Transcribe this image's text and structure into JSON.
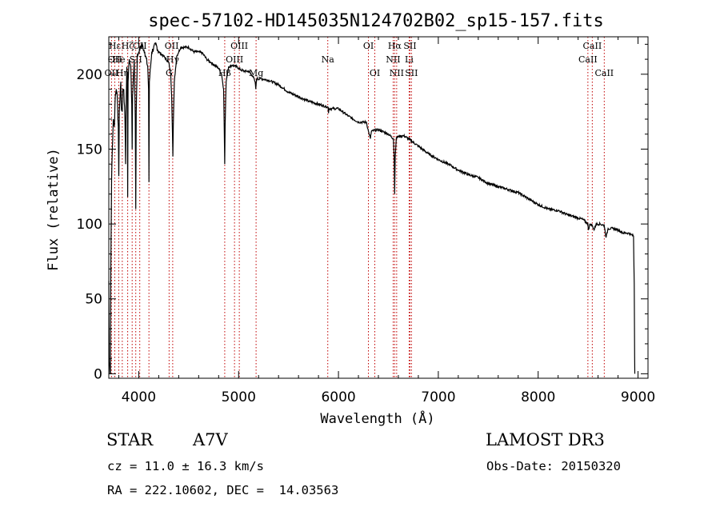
{
  "chart_data": {
    "type": "line",
    "title": "spec-57102-HD145035N124702B02_sp15-157.fits",
    "xlabel": "Wavelength (Å)",
    "ylabel": "Flux (relative)",
    "xlim": [
      3700,
      9100
    ],
    "ylim": [
      -3,
      225
    ],
    "xticks": [
      4000,
      5000,
      6000,
      7000,
      8000,
      9000
    ],
    "yticks": [
      0,
      50,
      100,
      150,
      200
    ],
    "series": [
      {
        "name": "spectrum",
        "points": [
          [
            3700,
            62
          ],
          [
            3705,
            8
          ],
          [
            3710,
            5
          ],
          [
            3712,
            0
          ],
          [
            3716,
            0
          ],
          [
            3720,
            70
          ],
          [
            3728,
            130
          ],
          [
            3735,
            150
          ],
          [
            3745,
            170
          ],
          [
            3755,
            165
          ],
          [
            3765,
            185
          ],
          [
            3775,
            190
          ],
          [
            3785,
            185
          ],
          [
            3795,
            165
          ],
          [
            3800,
            132
          ],
          [
            3805,
            175
          ],
          [
            3820,
            195
          ],
          [
            3825,
            178
          ],
          [
            3835,
            175
          ],
          [
            3840,
            190
          ],
          [
            3850,
            190
          ],
          [
            3862,
            170
          ],
          [
            3868,
            140
          ],
          [
            3872,
            175
          ],
          [
            3880,
            205
          ],
          [
            3885,
            200
          ],
          [
            3889,
            118
          ],
          [
            3893,
            195
          ],
          [
            3905,
            210
          ],
          [
            3920,
            205
          ],
          [
            3930,
            180
          ],
          [
            3934,
            150
          ],
          [
            3938,
            185
          ],
          [
            3955,
            210
          ],
          [
            3965,
            170
          ],
          [
            3970,
            110
          ],
          [
            3975,
            175
          ],
          [
            3985,
            212
          ],
          [
            4000,
            215
          ],
          [
            4030,
            220
          ],
          [
            4060,
            215
          ],
          [
            4090,
            205
          ],
          [
            4098,
            190
          ],
          [
            4102,
            128
          ],
          [
            4106,
            195
          ],
          [
            4130,
            215
          ],
          [
            4170,
            220
          ],
          [
            4200,
            215
          ],
          [
            4250,
            212
          ],
          [
            4300,
            208
          ],
          [
            4320,
            200
          ],
          [
            4330,
            185
          ],
          [
            4338,
            160
          ],
          [
            4342,
            145
          ],
          [
            4346,
            165
          ],
          [
            4356,
            195
          ],
          [
            4380,
            212
          ],
          [
            4420,
            218
          ],
          [
            4460,
            218
          ],
          [
            4500,
            218
          ],
          [
            4550,
            215
          ],
          [
            4600,
            215
          ],
          [
            4640,
            214
          ],
          [
            4680,
            210
          ],
          [
            4720,
            208
          ],
          [
            4760,
            206
          ],
          [
            4800,
            204
          ],
          [
            4830,
            200
          ],
          [
            4850,
            190
          ],
          [
            4857,
            160
          ],
          [
            4861,
            140
          ],
          [
            4865,
            165
          ],
          [
            4875,
            195
          ],
          [
            4900,
            205
          ],
          [
            4940,
            206
          ],
          [
            4980,
            205
          ],
          [
            5020,
            203
          ],
          [
            5060,
            202
          ],
          [
            5100,
            202
          ],
          [
            5140,
            199
          ],
          [
            5165,
            195
          ],
          [
            5172,
            190
          ],
          [
            5180,
            197
          ],
          [
            5230,
            197
          ],
          [
            5300,
            196
          ],
          [
            5400,
            193
          ],
          [
            5500,
            188
          ],
          [
            5600,
            185
          ],
          [
            5700,
            182
          ],
          [
            5800,
            180
          ],
          [
            5895,
            178
          ],
          [
            5900,
            174
          ],
          [
            5905,
            177
          ],
          [
            6000,
            177
          ],
          [
            6100,
            172
          ],
          [
            6200,
            168
          ],
          [
            6280,
            168
          ],
          [
            6300,
            162
          ],
          [
            6320,
            157
          ],
          [
            6330,
            162
          ],
          [
            6400,
            163
          ],
          [
            6500,
            160
          ],
          [
            6550,
            157
          ],
          [
            6558,
            145
          ],
          [
            6563,
            120
          ],
          [
            6568,
            145
          ],
          [
            6580,
            158
          ],
          [
            6650,
            159
          ],
          [
            6700,
            157
          ],
          [
            6800,
            152
          ],
          [
            6900,
            147
          ],
          [
            7000,
            143
          ],
          [
            7100,
            140
          ],
          [
            7200,
            136
          ],
          [
            7300,
            133
          ],
          [
            7400,
            131
          ],
          [
            7500,
            127
          ],
          [
            7600,
            125
          ],
          [
            7700,
            123
          ],
          [
            7800,
            121
          ],
          [
            7900,
            117
          ],
          [
            8000,
            113
          ],
          [
            8100,
            110
          ],
          [
            8200,
            109
          ],
          [
            8300,
            106
          ],
          [
            8400,
            104
          ],
          [
            8450,
            103
          ],
          [
            8498,
            100
          ],
          [
            8502,
            96
          ],
          [
            8520,
            100
          ],
          [
            8542,
            99
          ],
          [
            8560,
            96
          ],
          [
            8580,
            100
          ],
          [
            8620,
            100
          ],
          [
            8662,
            99
          ],
          [
            8680,
            91
          ],
          [
            8700,
            97
          ],
          [
            8750,
            97
          ],
          [
            8800,
            96
          ],
          [
            8850,
            94
          ],
          [
            8900,
            94
          ],
          [
            8930,
            93
          ],
          [
            8955,
            92
          ],
          [
            8962,
            60
          ],
          [
            8966,
            12
          ],
          [
            8968,
            0
          ]
        ]
      }
    ],
    "line_markers": [
      {
        "label": "Hε",
        "x": 3760,
        "row": 0
      },
      {
        "label": "OII",
        "x": 3760,
        "row": 1
      },
      {
        "label": "OII",
        "x": 3727,
        "row": 2
      },
      {
        "label": "Hζ",
        "x": 3889,
        "row": 0
      },
      {
        "label": "He",
        "x": 3800,
        "row": 1
      },
      {
        "label": "Hη",
        "x": 3835,
        "row": 2
      },
      {
        "label": "SII",
        "x": 3970,
        "row": 1
      },
      {
        "label": "OII",
        "x": 4010,
        "row": 0
      },
      {
        "label": "OII",
        "x": 4330,
        "row": 0
      },
      {
        "label": "Hγ",
        "x": 4340,
        "row": 1
      },
      {
        "label": "G",
        "x": 4304,
        "row": 2
      },
      {
        "label": "OIII",
        "x": 5007,
        "row": 0
      },
      {
        "label": "OIII",
        "x": 4959,
        "row": 1
      },
      {
        "label": "Hβ",
        "x": 4861,
        "row": 2
      },
      {
        "label": "Mg",
        "x": 5175,
        "row": 2
      },
      {
        "label": "Na",
        "x": 5893,
        "row": 1
      },
      {
        "label": "OI",
        "x": 6300,
        "row": 0
      },
      {
        "label": "OI",
        "x": 6364,
        "row": 2
      },
      {
        "label": "Hα",
        "x": 6563,
        "row": 0
      },
      {
        "label": "SII",
        "x": 6716,
        "row": 0
      },
      {
        "label": "NII",
        "x": 6548,
        "row": 1
      },
      {
        "label": "Li",
        "x": 6708,
        "row": 1
      },
      {
        "label": "NII",
        "x": 6583,
        "row": 2
      },
      {
        "label": "SII",
        "x": 6731,
        "row": 2
      },
      {
        "label": "CaII",
        "x": 8542,
        "row": 0
      },
      {
        "label": "CaII",
        "x": 8498,
        "row": 1
      },
      {
        "label": "CaII",
        "x": 8662,
        "row": 2
      }
    ],
    "marker_lines": [
      3727,
      3760,
      3800,
      3835,
      3889,
      3934,
      3970,
      4010,
      4102,
      4304,
      4340,
      4861,
      4959,
      5007,
      5175,
      5893,
      6300,
      6364,
      6548,
      6563,
      6583,
      6708,
      6716,
      6731,
      8498,
      8542,
      8662
    ]
  },
  "info": {
    "class": "STAR",
    "subclass": "A7V",
    "survey": "LAMOST DR3",
    "redshift": "cz = 11.0 ± 16.3 km/s",
    "obs_date": "Obs-Date: 20150320",
    "coords": "RA = 222.10602, DEC =  14.03563"
  },
  "colors": {
    "spectrum": "#000000",
    "marker": "#c00000",
    "axes": "#000000"
  }
}
